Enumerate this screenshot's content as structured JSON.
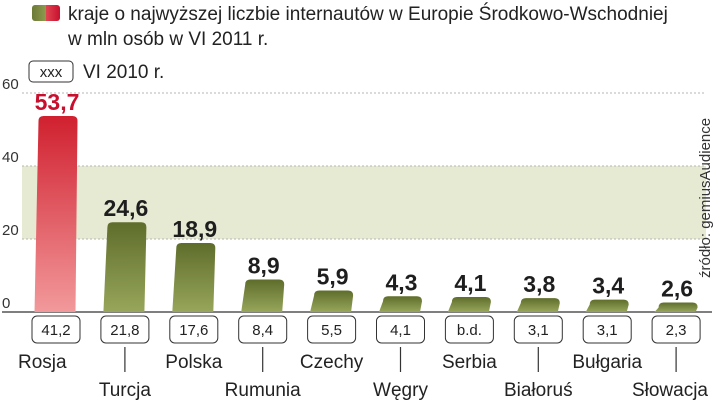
{
  "chart_data": {
    "type": "bar",
    "title": "kraje o najwyższej liczbie internautów w Europie Środkowo-Wschodniej",
    "subtitle": "w mln osób w VI 2011 r.",
    "legend_secondary_box": "xxx",
    "legend_secondary_label": "VI 2010 r.",
    "categories": [
      "Rosja",
      "Turcja",
      "Polska",
      "Rumunia",
      "Czechy",
      "Węgry",
      "Serbia",
      "Białoruś",
      "Bułgaria",
      "Słowacja"
    ],
    "series": [
      {
        "name": "kraje o najwyższej liczbie internautów w Europie Środkowo-Wschodniej",
        "values": [
          53.7,
          24.6,
          18.9,
          8.9,
          5.9,
          4.3,
          4.1,
          3.8,
          3.4,
          2.6
        ]
      }
    ],
    "value_labels": [
      "53,7",
      "24,6",
      "18,9",
      "8,9",
      "5,9",
      "4,3",
      "4,1",
      "3,8",
      "3,4",
      "2,6"
    ],
    "previous_labels": [
      "41,2",
      "21,8",
      "17,6",
      "8,4",
      "5,5",
      "4,1",
      "b.d.",
      "3,1",
      "3,1",
      "2,3"
    ],
    "y_ticks": [
      "0",
      "20",
      "40",
      "60"
    ],
    "y_tick_values": [
      0,
      20,
      40,
      60
    ],
    "ylim": [
      0,
      60
    ],
    "highlight_band": [
      20,
      40
    ],
    "source": "źródło: gemiusAudience",
    "colors": {
      "bar_green": "#6b7a35",
      "bar_green_light": "#8d9b4e",
      "bar_red": "#cf2a36",
      "bar_red_light": "#f0898c",
      "value_top": "#c8102e",
      "band": "#e7ead2"
    }
  }
}
